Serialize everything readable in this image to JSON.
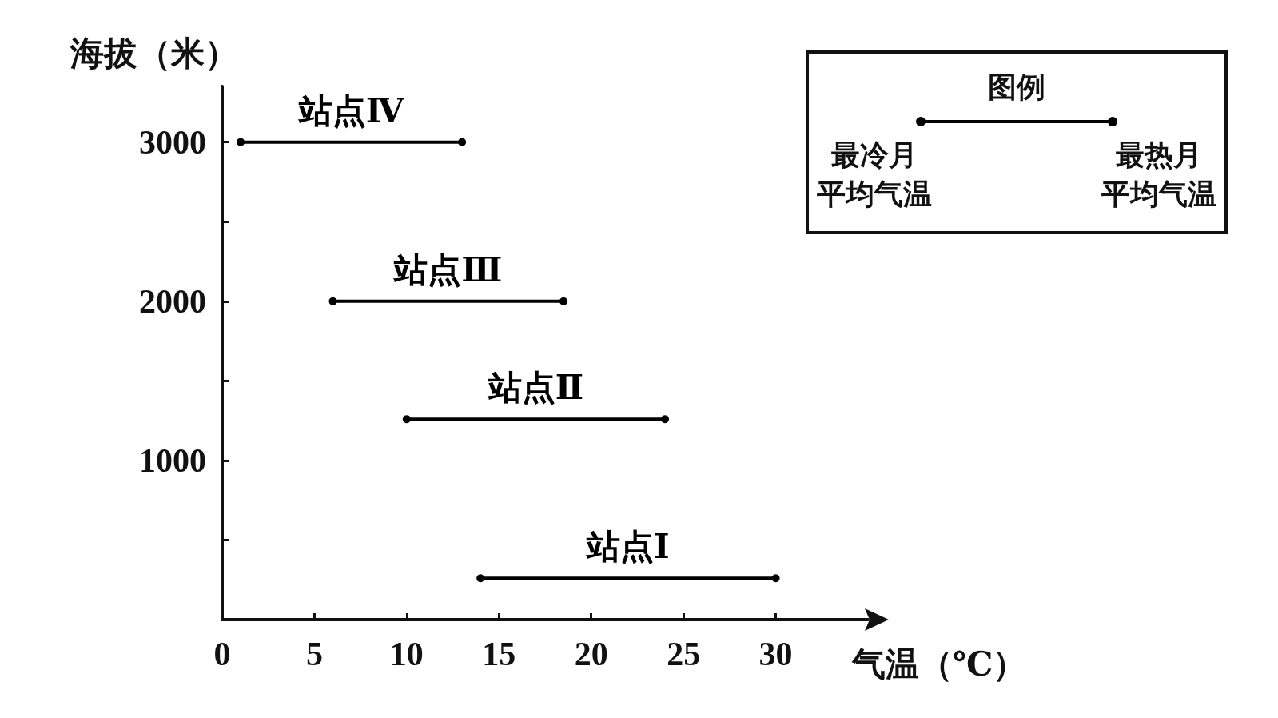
{
  "chart_data": {
    "type": "line",
    "xlabel": "气温（℃）",
    "ylabel": "海拔（米）",
    "legend_title": "图例",
    "annotations": [
      "最冷月平均气温",
      "最热月平均气温"
    ],
    "grid": false,
    "marker": "circle",
    "line_style": "solid",
    "xlim": [
      0,
      35
    ],
    "xticks": [
      0,
      5,
      10,
      15,
      20,
      25,
      30
    ],
    "ylim": [
      0,
      3350
    ],
    "yticks": [
      {
        "value": 500,
        "label": null
      },
      1000,
      {
        "value": 1500,
        "label": null
      },
      2000,
      {
        "value": 2500,
        "label": null
      },
      3000
    ],
    "series": [
      {
        "name": "站点Ⅳ",
        "color": "#000000",
        "x": [
          1,
          13
        ],
        "values": [
          3000,
          3000
        ]
      },
      {
        "name": "站点Ⅲ",
        "color": "#000000",
        "x": [
          6,
          18.5
        ],
        "values": [
          2000,
          2000
        ]
      },
      {
        "name": "站点Ⅱ",
        "color": "#000000",
        "x": [
          10,
          24
        ],
        "values": [
          1260,
          1260
        ]
      },
      {
        "name": "站点Ⅰ",
        "color": "#000000",
        "x": [
          14,
          30
        ],
        "values": [
          260,
          260
        ]
      }
    ]
  }
}
